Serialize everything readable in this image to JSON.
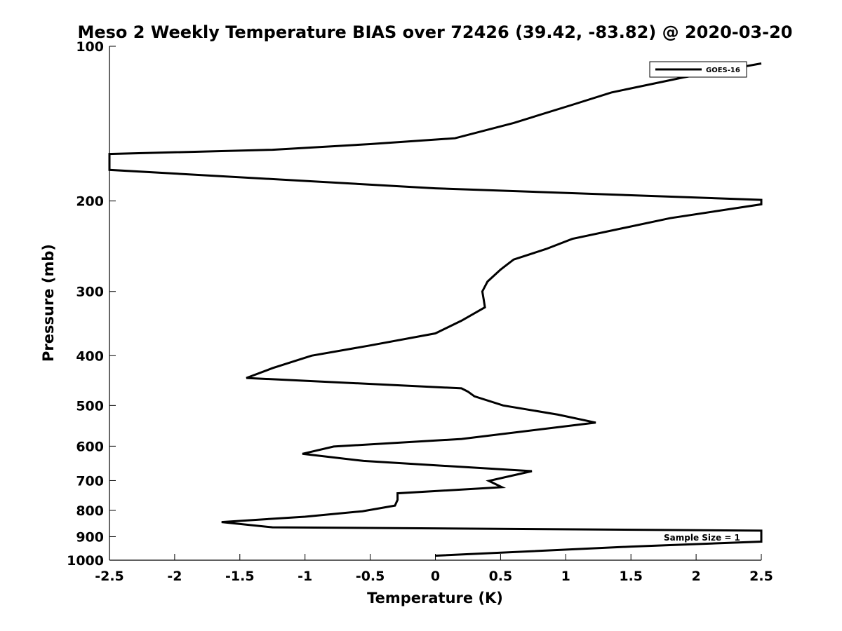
{
  "chart_data": {
    "type": "line",
    "title": "Meso 2 Weekly Temperature BIAS over 72426 (39.42, -83.82) @ 2020-03-20",
    "xlabel": "Temperature (K)",
    "ylabel": "Pressure (mb)",
    "xlim": [
      -2.5,
      2.5
    ],
    "ylim": [
      1000,
      100
    ],
    "y_scale": "log",
    "y_direction": "reversed",
    "xticks": [
      -2.5,
      -2,
      -1.5,
      -1,
      -0.5,
      0,
      0.5,
      1,
      1.5,
      2,
      2.5
    ],
    "xtick_labels": [
      "-2.5",
      "-2",
      "-1.5",
      "-1",
      "-0.5",
      "0",
      "0.5",
      "1",
      "1.5",
      "2",
      "2.5"
    ],
    "yticks": [
      100,
      200,
      300,
      400,
      500,
      600,
      700,
      800,
      900,
      1000
    ],
    "ytick_labels": [
      "100",
      "200",
      "300",
      "400",
      "500",
      "600",
      "700",
      "800",
      "900",
      "1000"
    ],
    "grid": false,
    "legend_position": "top-right",
    "annotation": "Sample Size = 1",
    "series": [
      {
        "name": "GOES-16",
        "color": "#000000",
        "x": [
          2.5,
          1.9,
          1.35,
          1.05,
          0.6,
          0.15,
          -0.5,
          -1.25,
          -2.5,
          -2.5,
          0.0,
          2.5,
          2.5,
          1.8,
          1.05,
          0.85,
          0.6,
          0.5,
          0.4,
          0.36,
          0.37,
          0.38,
          0.2,
          0.0,
          -0.5,
          -0.95,
          -1.25,
          -1.45,
          0.2,
          0.25,
          0.3,
          0.52,
          0.94,
          1.23,
          0.2,
          -0.78,
          -1.02,
          -0.55,
          0.74,
          0.41,
          0.51,
          -0.29,
          -0.29,
          -0.31,
          -0.56,
          -1.0,
          -1.64,
          -1.25,
          2.5,
          2.5,
          1.5,
          0.0
        ],
        "y": [
          108,
          115,
          123,
          130,
          141,
          151,
          155,
          159,
          162,
          174,
          189,
          199,
          203,
          216,
          237,
          248,
          260,
          272,
          287,
          300,
          310,
          322,
          342,
          362,
          382,
          400,
          423,
          442,
          463,
          470,
          480,
          500,
          521,
          540,
          581,
          601,
          621,
          641,
          671,
          701,
          721,
          741,
          763,
          783,
          803,
          823,
          843,
          863,
          876,
          920,
          941,
          980
        ]
      }
    ]
  }
}
